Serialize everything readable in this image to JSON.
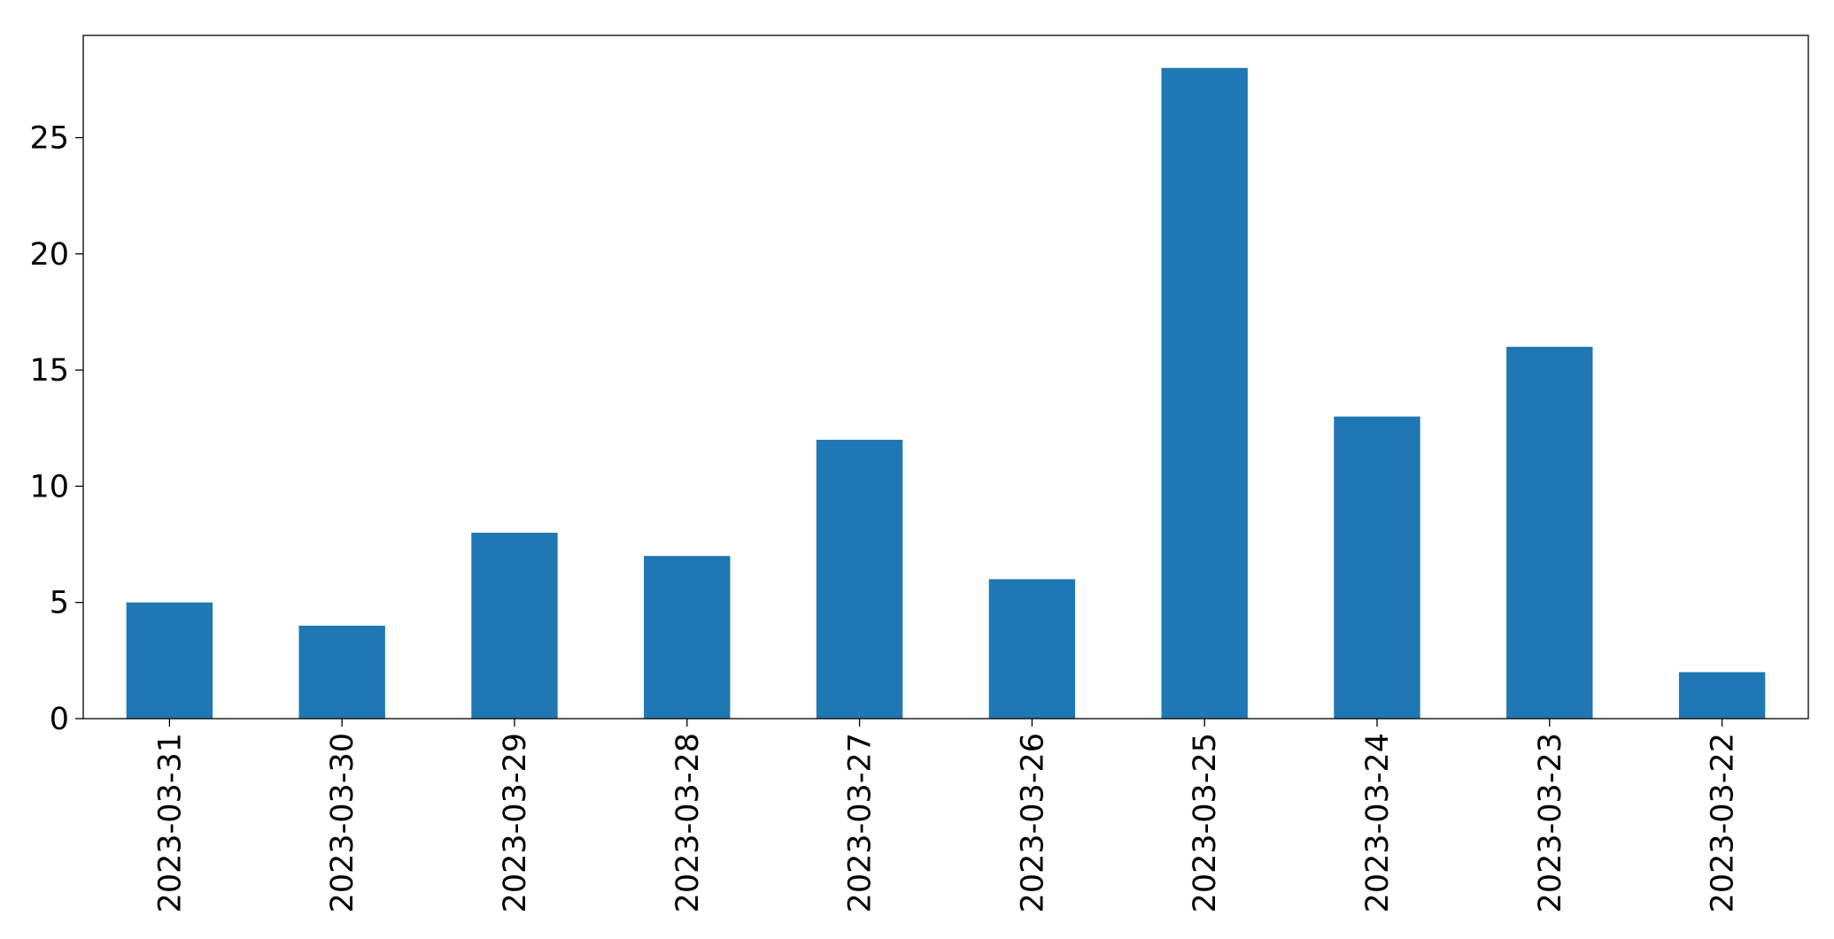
{
  "chart_data": {
    "type": "bar",
    "categories": [
      "2023-03-31",
      "2023-03-30",
      "2023-03-29",
      "2023-03-28",
      "2023-03-27",
      "2023-03-26",
      "2023-03-25",
      "2023-03-24",
      "2023-03-23",
      "2023-03-22"
    ],
    "values": [
      5,
      4,
      8,
      7,
      12,
      6,
      28,
      13,
      16,
      2
    ],
    "color": "#1f77b4",
    "ylim": [
      0,
      29.4
    ],
    "yticks": [
      0,
      5,
      10,
      15,
      20,
      25
    ],
    "grid": false
  }
}
